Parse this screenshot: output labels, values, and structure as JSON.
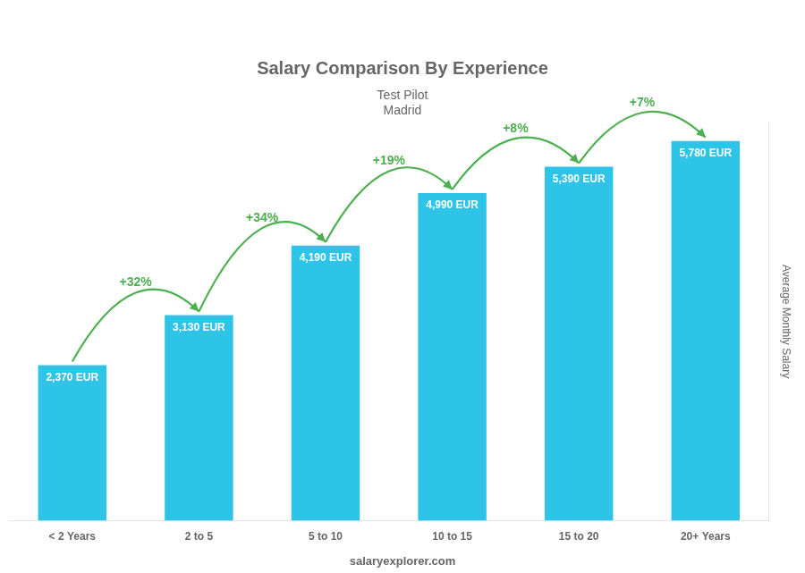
{
  "chart_data": {
    "type": "bar",
    "title": "Salary Comparison By Experience",
    "subtitle": "Test Pilot",
    "annotations": [
      "Madrid"
    ],
    "footer": "salaryexplorer.com",
    "ylabel": "Average Monthly Salary",
    "categories": [
      "< 2 Years",
      "2 to 5",
      "5 to 10",
      "10 to 15",
      "15 to 20",
      "20+ Years"
    ],
    "values": [
      2370,
      3130,
      4190,
      4990,
      5390,
      5780
    ],
    "value_labels": [
      "2,370 EUR",
      "3,130 EUR",
      "4,190 EUR",
      "4,990 EUR",
      "5,390 EUR",
      "5,780 EUR"
    ],
    "data_labels": true,
    "change_labels": [
      "+32%",
      "+34%",
      "+19%",
      "+8%",
      "+7%"
    ],
    "color": "#2EC4E8",
    "ylim": [
      0,
      6069
    ],
    "yticks": [],
    "tick_labels": "x",
    "grid": false
  }
}
